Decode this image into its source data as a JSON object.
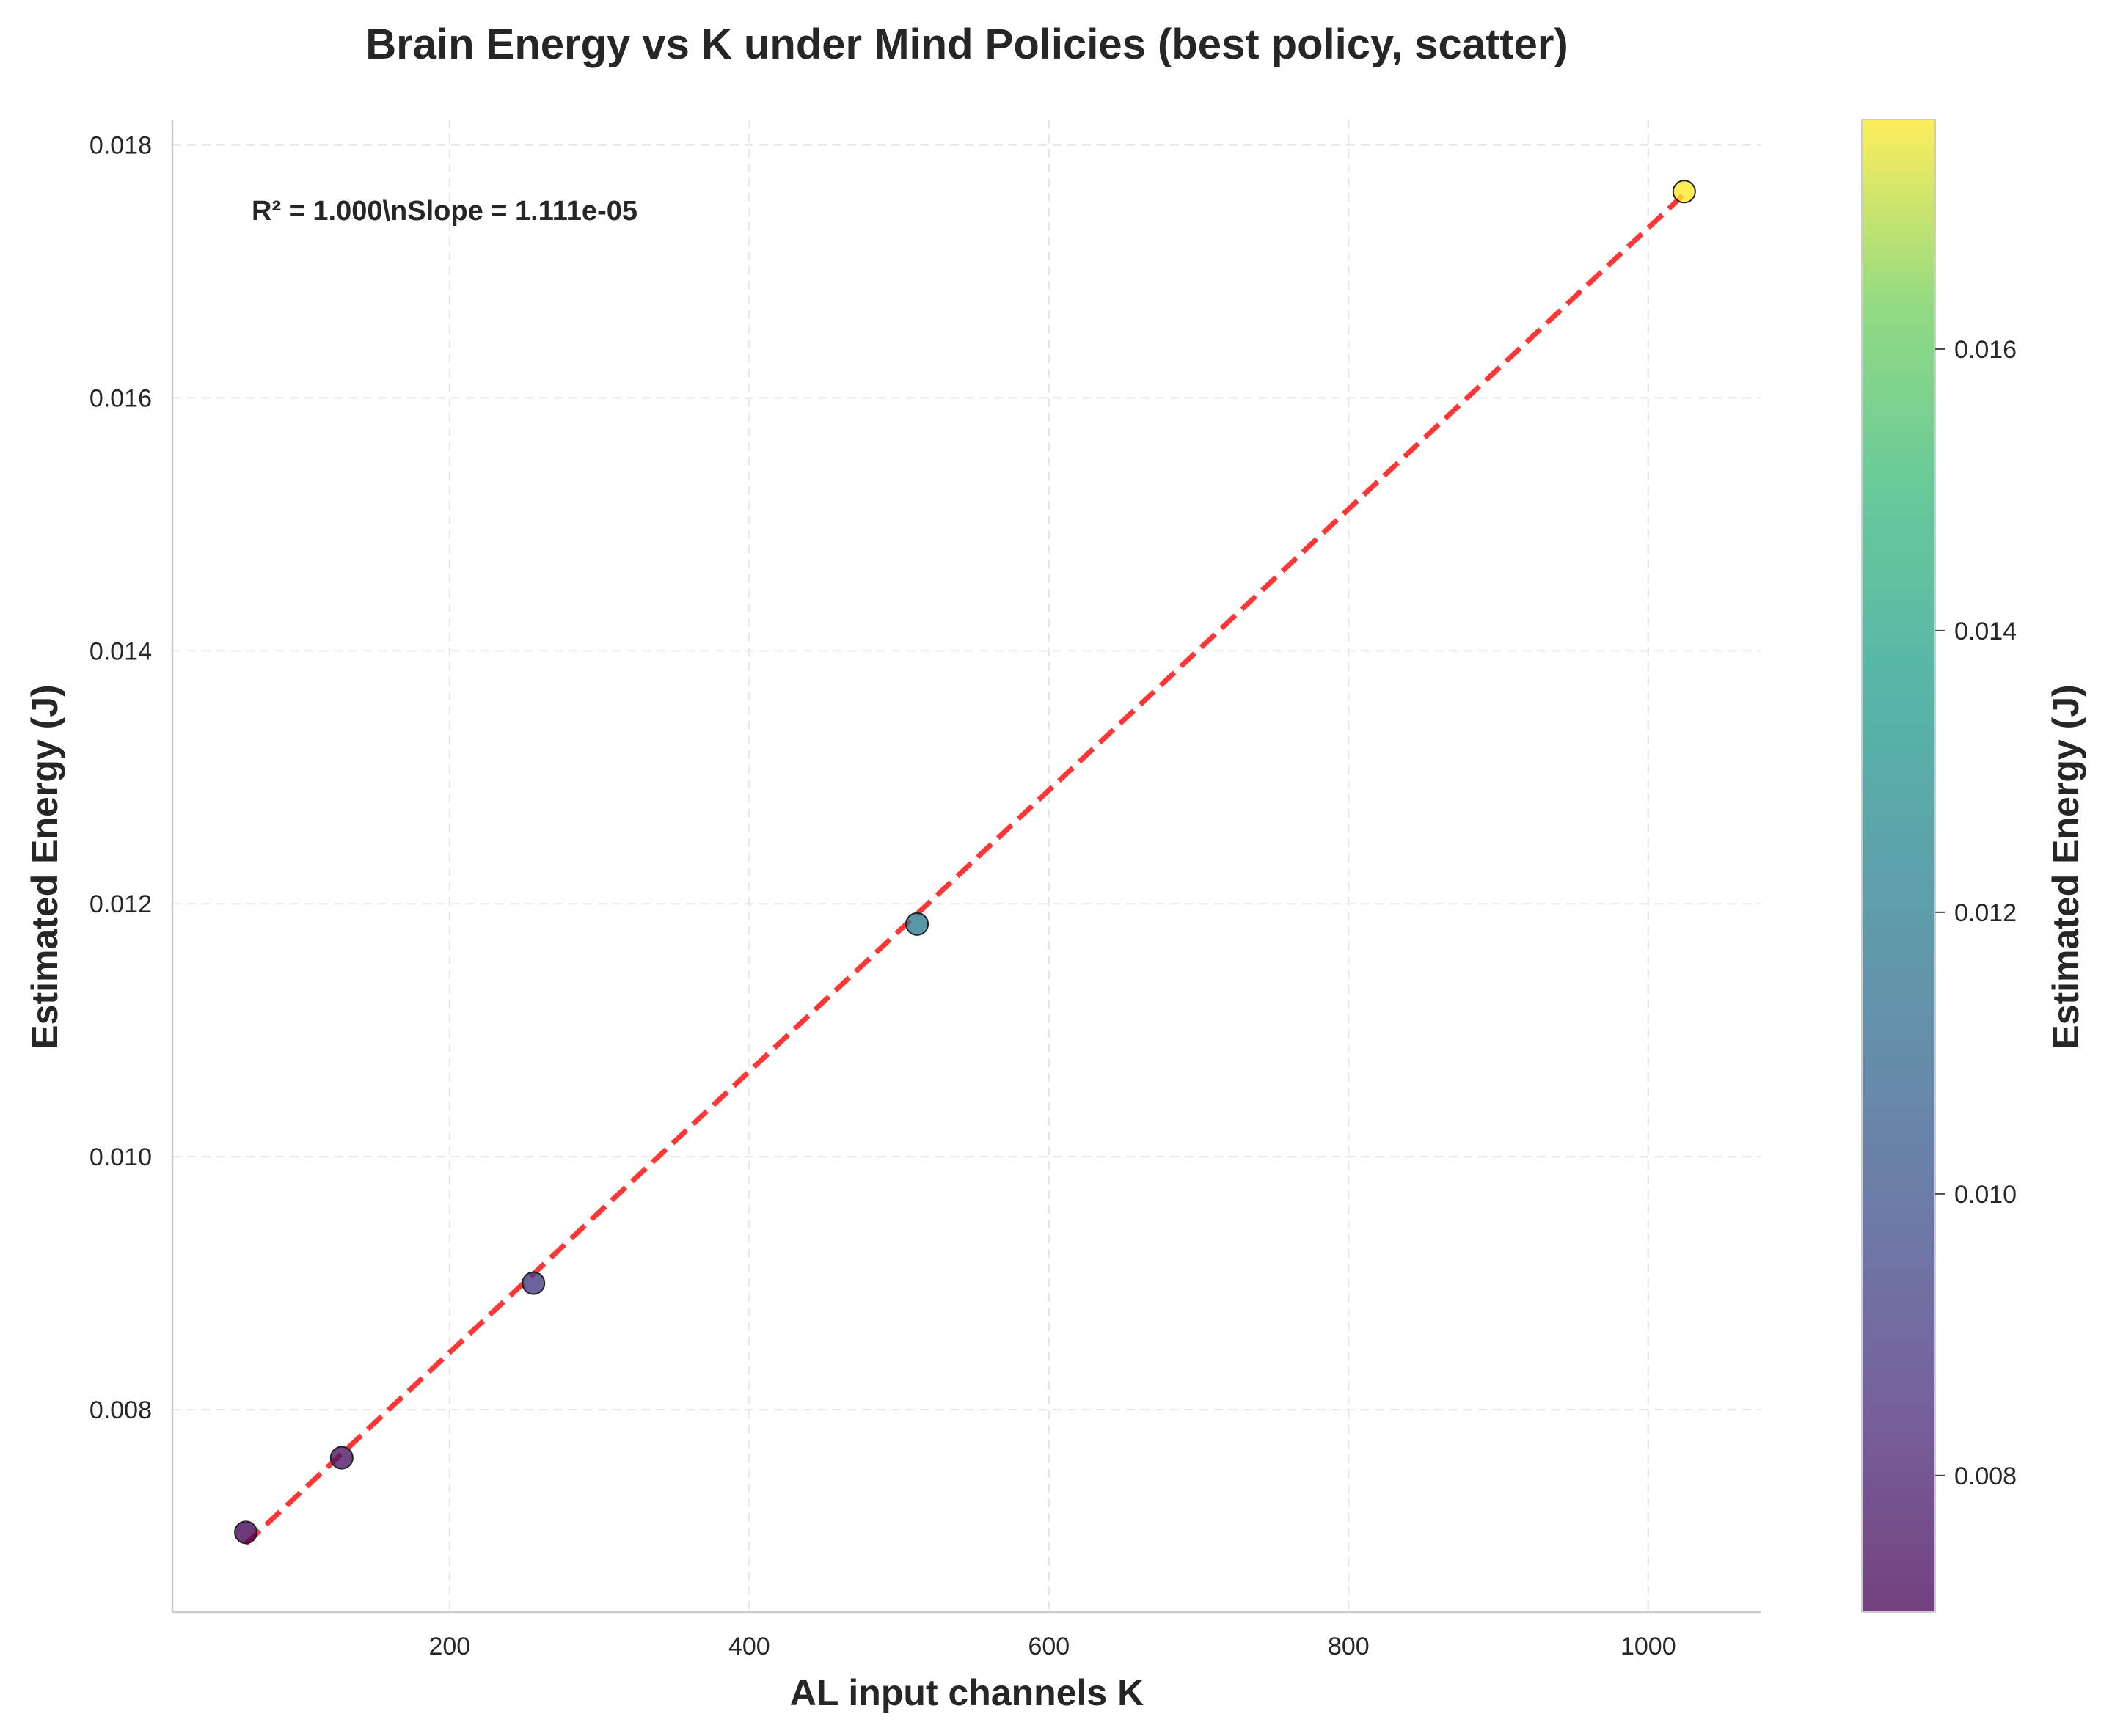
{
  "chart_data": {
    "type": "scatter",
    "title": "Brain Energy vs K under Mind Policies (best policy, scatter)",
    "xlabel": "AL input channels K",
    "ylabel": "Estimated Energy (J)",
    "colorbar_label": "Estimated Energy (J)",
    "annotation": "R² = 1.000\\nSlope = 1.111e-05",
    "xlim": [
      15,
      1075
    ],
    "ylim": [
      0.0064,
      0.0182
    ],
    "xticks": [
      200,
      400,
      600,
      800,
      1000
    ],
    "yticks": [
      0.008,
      0.01,
      0.012,
      0.014,
      0.016,
      0.018
    ],
    "colorbar_ticks": [
      0.008,
      0.01,
      0.012,
      0.014,
      0.016
    ],
    "colorbar_range": [
      0.00703,
      0.01763
    ],
    "colormap": "viridis",
    "grid": true,
    "points": [
      {
        "x": 64,
        "y": 0.00703
      },
      {
        "x": 128,
        "y": 0.00762
      },
      {
        "x": 256,
        "y": 0.009
      },
      {
        "x": 512,
        "y": 0.01184
      },
      {
        "x": 1024,
        "y": 0.01763
      }
    ],
    "fit_line": {
      "x": [
        64,
        1024
      ],
      "y": [
        0.00694,
        0.01761
      ],
      "color": "#ff2b2b",
      "style": "dashed"
    }
  }
}
